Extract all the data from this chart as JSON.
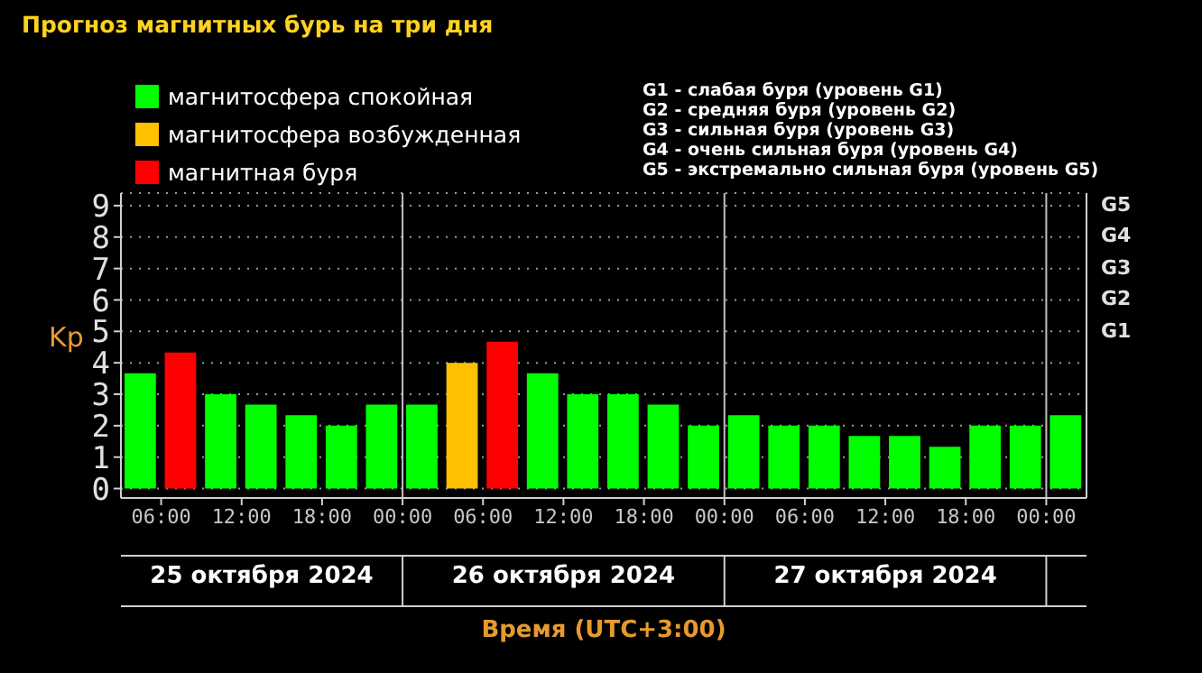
{
  "chart_data": {
    "type": "bar",
    "title": "Прогноз магнитных бурь на три дня",
    "ylabel": "Kp",
    "xlabel": "Время (UTC+3:00)",
    "x": [
      "2024-10-25T04:30",
      "2024-10-25T07:30",
      "2024-10-25T10:30",
      "2024-10-25T13:30",
      "2024-10-25T16:30",
      "2024-10-25T19:30",
      "2024-10-25T22:30",
      "2024-10-26T01:30",
      "2024-10-26T04:30",
      "2024-10-26T07:30",
      "2024-10-26T10:30",
      "2024-10-26T13:30",
      "2024-10-26T16:30",
      "2024-10-26T19:30",
      "2024-10-26T22:30",
      "2024-10-27T01:30",
      "2024-10-27T04:30",
      "2024-10-27T07:30",
      "2024-10-27T10:30",
      "2024-10-27T13:30",
      "2024-10-27T16:30",
      "2024-10-27T19:30",
      "2024-10-27T22:30",
      "2024-10-28T01:30"
    ],
    "stacked": true,
    "series": [
      {
        "name": "магнитосфера спокойная",
        "color": "#00ff00",
        "values": [
          3.67,
          null,
          3,
          2.67,
          2.33,
          2,
          2.67,
          2.67,
          null,
          null,
          3.67,
          3,
          3,
          2.67,
          2,
          2.33,
          2,
          2,
          1.67,
          1.67,
          1.33,
          2,
          2,
          2.33
        ]
      },
      {
        "name": "магнитосфера возбужденная",
        "color": "#ffc000",
        "values": [
          null,
          null,
          null,
          null,
          null,
          null,
          null,
          null,
          4,
          null,
          null,
          null,
          null,
          null,
          null,
          null,
          null,
          null,
          null,
          null,
          null,
          null,
          null,
          null
        ]
      },
      {
        "name": "магнитная буря",
        "color": "#ff0000",
        "values": [
          null,
          4.33,
          null,
          null,
          null,
          null,
          null,
          null,
          null,
          4.67,
          null,
          null,
          null,
          null,
          null,
          null,
          null,
          null,
          null,
          null,
          null,
          null,
          null,
          null
        ]
      }
    ],
    "xlim": [
      "2024-10-25T03:00",
      "2024-10-28T03:00"
    ],
    "xticks": [
      {
        "value": "2024-10-25T06:00",
        "label": "06:00"
      },
      {
        "value": "2024-10-25T12:00",
        "label": "12:00"
      },
      {
        "value": "2024-10-25T18:00",
        "label": "18:00"
      },
      {
        "value": "2024-10-26T00:00",
        "label": "00:00"
      },
      {
        "value": "2024-10-26T06:00",
        "label": "06:00"
      },
      {
        "value": "2024-10-26T12:00",
        "label": "12:00"
      },
      {
        "value": "2024-10-26T18:00",
        "label": "18:00"
      },
      {
        "value": "2024-10-27T00:00",
        "label": "00:00"
      },
      {
        "value": "2024-10-27T06:00",
        "label": "06:00"
      },
      {
        "value": "2024-10-27T12:00",
        "label": "12:00"
      },
      {
        "value": "2024-10-27T18:00",
        "label": "18:00"
      },
      {
        "value": "2024-10-28T00:00",
        "label": "00:00"
      }
    ],
    "ylim": [
      -0.3,
      9.4
    ],
    "yticks": [
      0,
      1,
      2,
      3,
      4,
      5,
      6,
      7,
      8,
      9
    ],
    "ref_lines": [
      {
        "axis": "x",
        "value": "2024-10-26T00:00",
        "color": "#c0c0c0"
      },
      {
        "axis": "x",
        "value": "2024-10-27T00:00",
        "color": "#c0c0c0"
      },
      {
        "axis": "x",
        "value": "2024-10-28T00:00",
        "color": "#c0c0c0"
      }
    ],
    "grid": "y",
    "legend": "top left",
    "annotations": [
      "25 октября 2024",
      "26 октября 2024",
      "27 октября 2024",
      "G1 - слабая буря (уровень G1)",
      "G2 - средняя буря (уровень G2)",
      "G3 - сильная буря (уровень G3)",
      "G4 - очень сильная буря (уровень G4)",
      "G5 - экстремально сильная буря (уровень G5)",
      "G5",
      "G4",
      "G3",
      "G2",
      "G1"
    ]
  }
}
